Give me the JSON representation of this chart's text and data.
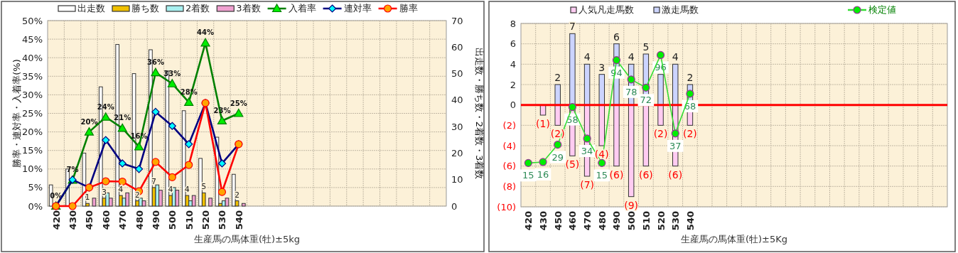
{
  "chart_data": [
    {
      "type": "bar",
      "xlabel": "生産馬の馬体重(牡)±5kg",
      "ylabel": "勝率・連対率・入着率(%)",
      "y2label": "出走数・勝ち数・2着数・3着数",
      "categories": [
        "420",
        "430",
        "450",
        "460",
        "470",
        "480",
        "490",
        "500",
        "510",
        "520",
        "530",
        "540",
        null,
        null,
        null,
        null,
        null,
        null,
        null,
        null,
        null,
        null,
        null,
        null
      ],
      "ylim": [
        0,
        50
      ],
      "yticks": [
        {
          "value": 0,
          "label": "0%"
        },
        {
          "value": 5,
          "label": "5%"
        },
        {
          "value": 10,
          "label": "10%"
        },
        {
          "value": 15,
          "label": "15%"
        },
        {
          "value": 20,
          "label": "20%"
        },
        {
          "value": 25,
          "label": "25%"
        },
        {
          "value": 30,
          "label": "30%"
        },
        {
          "value": 35,
          "label": "35%"
        },
        {
          "value": 40,
          "label": "40%"
        },
        {
          "value": 45,
          "label": "45%"
        },
        {
          "value": 50,
          "label": "50%"
        }
      ],
      "y2lim": [
        0,
        70
      ],
      "y2ticks": [
        0,
        10,
        20,
        30,
        40,
        50,
        60,
        70
      ],
      "grid": true,
      "legend": "top",
      "series": [
        {
          "name": "出走数",
          "axis": "y2",
          "color": "#ffffff",
          "values": [
            8,
            14,
            20,
            45,
            61,
            50,
            59,
            51,
            36,
            18,
            26,
            12,
            null,
            null,
            null,
            null,
            null,
            null,
            null,
            null,
            null,
            null,
            null,
            null
          ]
        },
        {
          "name": "勝ち数",
          "axis": "y2",
          "color": "#f0c000",
          "values": [
            0,
            0,
            1,
            3,
            4,
            2,
            7,
            4,
            4,
            5,
            1,
            2,
            null,
            null,
            null,
            null,
            null,
            null,
            null,
            null,
            null,
            null,
            null,
            null
          ],
          "value_labels": [
            null,
            null,
            "1",
            "3",
            "4",
            "2",
            "7",
            "4",
            "4",
            "5",
            null,
            "2",
            null,
            null,
            null,
            null,
            null,
            null,
            null,
            null,
            null,
            null,
            null,
            null
          ]
        },
        {
          "name": "2着数",
          "axis": "y2",
          "color": "#a8f0f0",
          "values": [
            0,
            null,
            0,
            5,
            3,
            3,
            8,
            7,
            2,
            0,
            2,
            0,
            null,
            null,
            null,
            null,
            null,
            null,
            null,
            null,
            null,
            null,
            null,
            null
          ]
        },
        {
          "name": "3着数",
          "axis": "y2",
          "color": "#f0a0d0",
          "values": [
            0,
            0,
            3,
            3,
            5,
            2,
            6,
            6,
            4,
            3,
            3,
            1,
            null,
            null,
            null,
            null,
            null,
            null,
            null,
            null,
            null,
            null,
            null,
            null
          ]
        },
        {
          "name": "入着率",
          "type": "line",
          "color": "#008000",
          "marker": "triangle",
          "values": [
            0,
            7,
            20,
            24,
            21,
            16,
            36,
            33,
            28,
            44,
            23,
            25,
            null,
            null,
            null,
            null,
            null,
            null,
            null,
            null,
            null,
            null,
            null,
            null
          ],
          "value_labels": [
            "0%",
            "7%",
            "20%",
            "24%",
            "21%",
            "16%",
            "36%",
            "33%",
            "28%",
            "44%",
            "23%",
            "25%",
            null,
            null,
            null,
            null,
            null,
            null,
            null,
            null,
            null,
            null,
            null,
            null
          ]
        },
        {
          "name": "連対率",
          "type": "line",
          "color": "#000080",
          "marker": "diamond",
          "values": [
            0,
            7.1,
            5,
            17.8,
            11.5,
            10,
            25.4,
            21.6,
            16.7,
            27.8,
            11.5,
            16.7,
            null,
            null,
            null,
            null,
            null,
            null,
            null,
            null,
            null,
            null,
            null,
            null
          ]
        },
        {
          "name": "勝率",
          "type": "line",
          "color": "#ff0000",
          "marker": "circle",
          "values": [
            0,
            0,
            5,
            6.7,
            6.6,
            4,
            11.9,
            7.8,
            11.1,
            27.8,
            3.8,
            16.7,
            null,
            null,
            null,
            null,
            null,
            null,
            null,
            null,
            null,
            null,
            null,
            null
          ]
        }
      ]
    },
    {
      "type": "bar",
      "xlabel": "生産馬の馬体重(牡)±5Kg",
      "categories": [
        "420",
        "430",
        "450",
        "460",
        "470",
        "480",
        "490",
        "500",
        "510",
        "520",
        "530",
        "540",
        null,
        null,
        null,
        null,
        null,
        null,
        null,
        null,
        null,
        null,
        null,
        null,
        null,
        null,
        null,
        null,
        null
      ],
      "ylim": [
        -10,
        8
      ],
      "yticks": [
        {
          "value": -10,
          "label": "(10)"
        },
        {
          "value": -8,
          "label": "(8)"
        },
        {
          "value": -6,
          "label": "(6)"
        },
        {
          "value": -4,
          "label": "(4)"
        },
        {
          "value": -2,
          "label": "(2)"
        },
        0,
        2,
        4,
        6,
        8
      ],
      "grid": true,
      "legend": "top",
      "stacked": true,
      "ref_lines": [
        {
          "axis": "y",
          "value": 0,
          "color": "#ff0000"
        }
      ],
      "series": [
        {
          "name": "人気凡走馬数",
          "color": "#ffccf2",
          "values": [
            0,
            -1,
            -2,
            -5,
            -7,
            -4,
            -6,
            -9,
            -6,
            -2,
            -6,
            -2,
            null,
            null,
            null,
            null,
            null,
            null,
            null,
            null,
            null,
            null,
            null,
            null,
            null,
            null,
            null,
            null,
            null
          ],
          "value_labels": [
            null,
            "(1)",
            "(2)",
            "(5)",
            "(7)",
            "(4)",
            "(6)",
            "(9)",
            "(6)",
            "(2)",
            "(6)",
            "(2)",
            null,
            null,
            null,
            null,
            null,
            null,
            null,
            null,
            null,
            null,
            null,
            null,
            null,
            null,
            null,
            null,
            null
          ]
        },
        {
          "name": "激走馬数",
          "color": "#ccd4ff",
          "values": [
            0,
            0,
            2,
            7,
            4,
            3,
            6,
            4,
            5,
            3,
            4,
            2,
            null,
            null,
            null,
            null,
            null,
            null,
            null,
            null,
            null,
            null,
            null,
            null,
            null,
            null,
            null,
            null,
            null
          ],
          "value_labels": [
            null,
            null,
            "2",
            "7",
            "4",
            "3",
            "6",
            "4",
            "5",
            null,
            "4",
            "2",
            null,
            null,
            null,
            null,
            null,
            null,
            null,
            null,
            null,
            null,
            null,
            null,
            null,
            null,
            null,
            null,
            null
          ]
        },
        {
          "name": "検定値",
          "type": "line",
          "color": "#33dd33",
          "marker": "circle",
          "values": [
            -5.7,
            -5.6,
            -3.9,
            -0.2,
            -3.3,
            -5.7,
            4.4,
            2.5,
            1.7,
            4.9,
            -2.8,
            1.1,
            null,
            null,
            null,
            null,
            null,
            null,
            null,
            null,
            null,
            null,
            null,
            null,
            null,
            null,
            null,
            null,
            null
          ]
        }
      ],
      "annotations": [
        {
          "text": "15",
          "x": "420",
          "y": -5.7
        },
        {
          "text": "16",
          "x": "430",
          "y": -5.6
        },
        {
          "text": "29",
          "x": "450",
          "y": -3.9
        },
        {
          "text": "58",
          "x": "460",
          "y": -0.2
        },
        {
          "text": "34",
          "x": "470",
          "y": -3.3
        },
        {
          "text": "15",
          "x": "480",
          "y": -5.7
        },
        {
          "text": "94",
          "x": "490",
          "y": 4.4
        },
        {
          "text": "78",
          "x": "500",
          "y": 2.5
        },
        {
          "text": "72",
          "x": "510",
          "y": 1.7
        },
        {
          "text": "96",
          "x": "520",
          "y": 4.9
        },
        {
          "text": "37",
          "x": "530",
          "y": -2.8
        },
        {
          "text": "68",
          "x": "540",
          "y": 1.1
        }
      ]
    }
  ]
}
